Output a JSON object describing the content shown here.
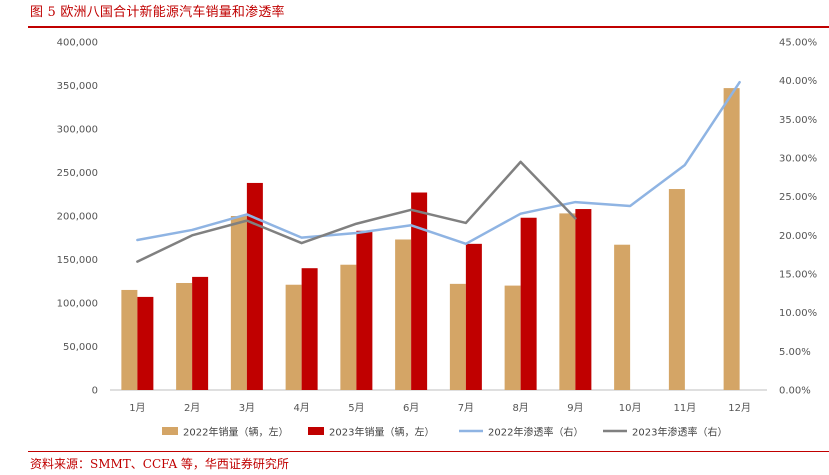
{
  "title": "图 5 欧洲八国合计新能源汽车销量和渗透率",
  "source": "资料来源：SMMT、CCFA 等，华西证券研究所",
  "colors": {
    "bar_2022": "#d4a566",
    "bar_2023": "#c00000",
    "line_2022": "#8fb4e3",
    "line_2023": "#808080",
    "accent": "#c00000"
  },
  "chart_data": {
    "type": "bar",
    "categories": [
      "1月",
      "2月",
      "3月",
      "4月",
      "5月",
      "6月",
      "7月",
      "8月",
      "9月",
      "10月",
      "11月",
      "12月"
    ],
    "y_left": {
      "lim": [
        0,
        400000
      ],
      "ticks": [
        "0",
        "50,000",
        "100,000",
        "150,000",
        "200,000",
        "250,000",
        "300,000",
        "350,000",
        "400,000"
      ]
    },
    "y_right": {
      "lim": [
        0,
        0.45
      ],
      "ticks": [
        "0.00%",
        "5.00%",
        "10.00%",
        "15.00%",
        "20.00%",
        "25.00%",
        "30.00%",
        "35.00%",
        "40.00%",
        "45.00%"
      ]
    },
    "series": [
      {
        "name": "2022年销量（辆，左）",
        "kind": "bar",
        "axis": "left",
        "values": [
          115000,
          123000,
          200000,
          121000,
          144000,
          173000,
          122000,
          120000,
          203000,
          167000,
          231000,
          347000
        ]
      },
      {
        "name": "2023年销量（辆，左）",
        "kind": "bar",
        "axis": "left",
        "values": [
          107000,
          130000,
          238000,
          140000,
          183000,
          227000,
          168000,
          198000,
          208000,
          null,
          null,
          null
        ]
      },
      {
        "name": "2022年渗透率（右）",
        "kind": "line",
        "axis": "right",
        "values": [
          0.194,
          0.207,
          0.227,
          0.197,
          0.203,
          0.213,
          0.189,
          0.228,
          0.243,
          0.238,
          0.291,
          0.398
        ]
      },
      {
        "name": "2023年渗透率（右）",
        "kind": "line",
        "axis": "right",
        "values": [
          0.166,
          0.2,
          0.219,
          0.19,
          0.215,
          0.233,
          0.216,
          0.295,
          0.222,
          null,
          null,
          null
        ]
      }
    ],
    "legend_position": "bottom",
    "grid": false
  }
}
